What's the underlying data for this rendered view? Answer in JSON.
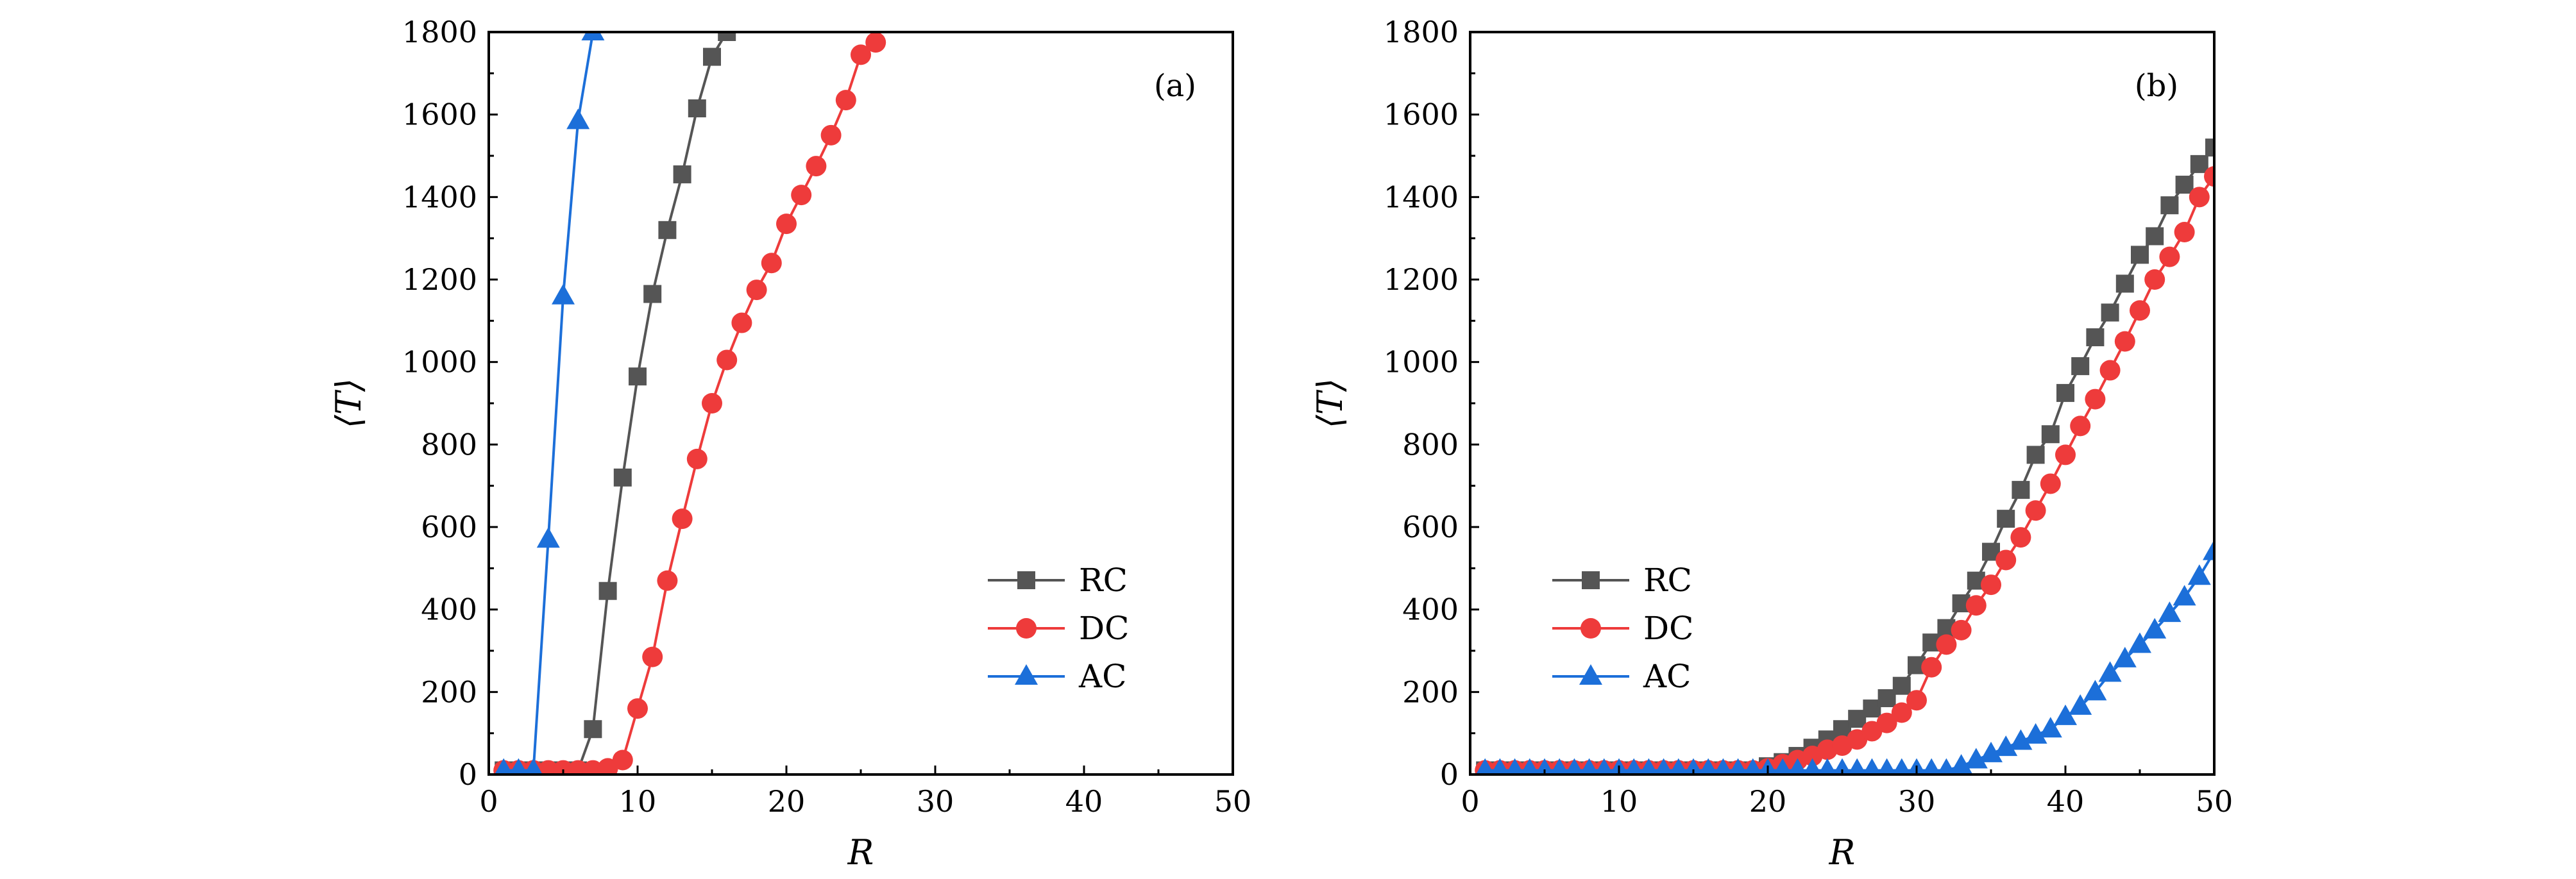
{
  "chart_data": [
    {
      "type": "line",
      "panel_label": "(a)",
      "xlabel": "R",
      "ylabel": "⟨T⟩",
      "xlim": [
        0,
        50
      ],
      "ylim": [
        0,
        1800
      ],
      "xticks": [
        0,
        10,
        20,
        30,
        40,
        50
      ],
      "yticks": [
        0,
        200,
        400,
        600,
        800,
        1000,
        1200,
        1400,
        1600,
        1800
      ],
      "legend_position": "bottom-right",
      "series": [
        {
          "name": "RC",
          "color": "#555555",
          "marker": "square",
          "x": [
            1,
            2,
            3,
            4,
            5,
            6,
            7,
            8,
            9,
            10,
            11,
            12,
            13,
            14,
            15,
            16
          ],
          "y": [
            10,
            10,
            10,
            10,
            10,
            10,
            110,
            445,
            720,
            965,
            1165,
            1320,
            1455,
            1615,
            1740,
            1800
          ]
        },
        {
          "name": "DC",
          "color": "#ee3b3b",
          "marker": "circle",
          "x": [
            1,
            2,
            3,
            4,
            5,
            6,
            7,
            8,
            9,
            10,
            11,
            12,
            13,
            14,
            15,
            16,
            17,
            18,
            19,
            20,
            21,
            22,
            23,
            24,
            25,
            26
          ],
          "y": [
            10,
            10,
            10,
            10,
            10,
            10,
            10,
            15,
            35,
            160,
            285,
            470,
            620,
            765,
            900,
            1005,
            1095,
            1175,
            1240,
            1335,
            1405,
            1475,
            1550,
            1635,
            1745,
            1775
          ]
        },
        {
          "name": "AC",
          "color": "#1c6fd9",
          "marker": "triangle",
          "x": [
            1,
            2,
            3,
            4,
            5,
            6,
            7
          ],
          "y": [
            10,
            10,
            10,
            570,
            1160,
            1585,
            1800
          ]
        }
      ]
    },
    {
      "type": "line",
      "panel_label": "(b)",
      "xlabel": "R",
      "ylabel": "⟨T⟩",
      "xlim": [
        0,
        50
      ],
      "ylim": [
        0,
        1800
      ],
      "xticks": [
        0,
        10,
        20,
        30,
        40,
        50
      ],
      "yticks": [
        0,
        200,
        400,
        600,
        800,
        1000,
        1200,
        1400,
        1600,
        1800
      ],
      "legend_position": "bottom-left",
      "series": [
        {
          "name": "RC",
          "color": "#555555",
          "marker": "square",
          "x": [
            1,
            2,
            3,
            4,
            5,
            6,
            7,
            8,
            9,
            10,
            11,
            12,
            13,
            14,
            15,
            16,
            17,
            18,
            19,
            20,
            21,
            22,
            23,
            24,
            25,
            26,
            27,
            28,
            29,
            30,
            31,
            32,
            33,
            34,
            35,
            36,
            37,
            38,
            39,
            40,
            41,
            42,
            43,
            44,
            45,
            46,
            47,
            48,
            49,
            50
          ],
          "y": [
            10,
            10,
            10,
            10,
            10,
            10,
            10,
            10,
            10,
            10,
            10,
            10,
            10,
            10,
            10,
            10,
            10,
            10,
            10,
            20,
            30,
            45,
            65,
            85,
            110,
            135,
            160,
            185,
            215,
            265,
            320,
            355,
            415,
            470,
            540,
            620,
            690,
            775,
            825,
            925,
            990,
            1060,
            1120,
            1190,
            1260,
            1305,
            1380,
            1430,
            1480,
            1520
          ]
        },
        {
          "name": "DC",
          "color": "#ee3b3b",
          "marker": "circle",
          "x": [
            1,
            2,
            3,
            4,
            5,
            6,
            7,
            8,
            9,
            10,
            11,
            12,
            13,
            14,
            15,
            16,
            17,
            18,
            19,
            20,
            21,
            22,
            23,
            24,
            25,
            26,
            27,
            28,
            29,
            30,
            31,
            32,
            33,
            34,
            35,
            36,
            37,
            38,
            39,
            40,
            41,
            42,
            43,
            44,
            45,
            46,
            47,
            48,
            49,
            50
          ],
          "y": [
            10,
            10,
            10,
            10,
            10,
            10,
            10,
            10,
            10,
            10,
            10,
            10,
            10,
            10,
            10,
            10,
            10,
            10,
            10,
            15,
            25,
            35,
            45,
            60,
            70,
            85,
            105,
            125,
            150,
            180,
            260,
            315,
            350,
            410,
            460,
            520,
            575,
            640,
            705,
            775,
            845,
            910,
            980,
            1050,
            1125,
            1200,
            1255,
            1315,
            1400,
            1450
          ]
        },
        {
          "name": "AC",
          "color": "#1c6fd9",
          "marker": "triangle",
          "x": [
            1,
            2,
            3,
            4,
            5,
            6,
            7,
            8,
            9,
            10,
            11,
            12,
            13,
            14,
            15,
            16,
            17,
            18,
            19,
            20,
            21,
            22,
            23,
            24,
            25,
            26,
            27,
            28,
            29,
            30,
            31,
            32,
            33,
            34,
            35,
            36,
            37,
            38,
            39,
            40,
            41,
            42,
            43,
            44,
            45,
            46,
            47,
            48,
            49,
            50
          ],
          "y": [
            10,
            10,
            10,
            10,
            10,
            10,
            10,
            10,
            10,
            10,
            10,
            10,
            10,
            10,
            10,
            10,
            10,
            10,
            10,
            10,
            10,
            10,
            10,
            10,
            10,
            10,
            10,
            10,
            10,
            10,
            10,
            10,
            20,
            35,
            50,
            65,
            80,
            95,
            110,
            140,
            165,
            200,
            245,
            280,
            315,
            350,
            390,
            430,
            480,
            540
          ]
        }
      ]
    }
  ]
}
